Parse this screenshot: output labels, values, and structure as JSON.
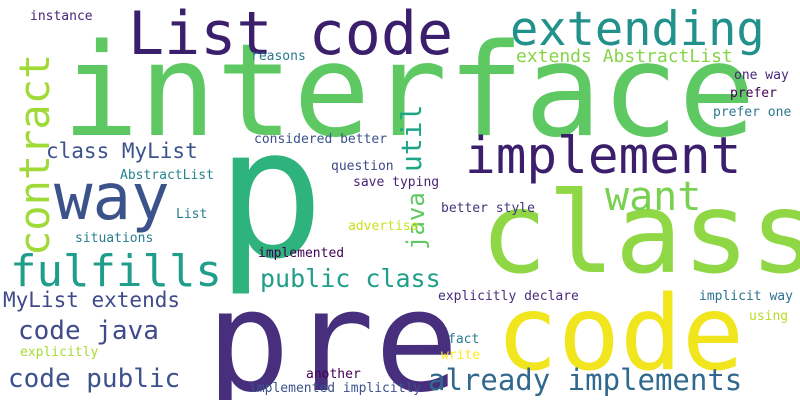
{
  "words": [
    {
      "id": "w-interface",
      "text": "interface",
      "color": "#5ec962"
    },
    {
      "id": "w-p",
      "text": "p",
      "color": "#2eb37c"
    },
    {
      "id": "w-pre",
      "text": "pre",
      "color": "#472f7d"
    },
    {
      "id": "w-class",
      "text": "class",
      "color": "#8fd744"
    },
    {
      "id": "w-code",
      "text": "code",
      "color": "#f1e51d"
    },
    {
      "id": "w-list-code",
      "text": "List code",
      "color": "#3b1f6d"
    },
    {
      "id": "w-extending",
      "text": "extending",
      "color": "#21918c"
    },
    {
      "id": "w-implement",
      "text": "implement",
      "color": "#3b1f6d"
    },
    {
      "id": "w-way",
      "text": "way",
      "color": "#3b528b"
    },
    {
      "id": "w-want",
      "text": "want",
      "color": "#7ad151"
    },
    {
      "id": "w-fulfills",
      "text": "fulfills",
      "color": "#1f9e89"
    },
    {
      "id": "w-contract",
      "text": "contract",
      "color": "#a0da39"
    },
    {
      "id": "w-public-class",
      "text": "public class",
      "color": "#1f9e89"
    },
    {
      "id": "w-mylist-extends",
      "text": "MyList extends",
      "color": "#3e4a89"
    },
    {
      "id": "w-code-java",
      "text": "code java",
      "color": "#3e4a89"
    },
    {
      "id": "w-code-public",
      "text": "code public",
      "color": "#3b528b"
    },
    {
      "id": "w-already-implements",
      "text": "already implements",
      "color": "#31688e"
    },
    {
      "id": "w-class-mylist",
      "text": "class MyList",
      "color": "#3b528b"
    },
    {
      "id": "w-util",
      "text": "util",
      "color": "#20a486"
    },
    {
      "id": "w-java",
      "text": "java",
      "color": "#5ec962"
    },
    {
      "id": "w-extends-abstractlist",
      "text": "extends AbstractList",
      "color": "#86d549"
    },
    {
      "id": "w-instance",
      "text": "instance",
      "color": "#482576"
    },
    {
      "id": "w-reasons",
      "text": "reasons",
      "color": "#2a788e"
    },
    {
      "id": "w-considered-better",
      "text": "considered better",
      "color": "#3b528b"
    },
    {
      "id": "w-question",
      "text": "question",
      "color": "#3e4a89"
    },
    {
      "id": "w-save-typing",
      "text": "save typing",
      "color": "#482475"
    },
    {
      "id": "w-abstractlist",
      "text": "AbstractList",
      "color": "#25848e"
    },
    {
      "id": "w-list",
      "text": "List",
      "color": "#287d8e"
    },
    {
      "id": "w-situations",
      "text": "situations",
      "color": "#287d8e"
    },
    {
      "id": "w-advertise",
      "text": "advertise",
      "color": "#cae11f"
    },
    {
      "id": "w-better-style",
      "text": "better style",
      "color": "#46327e"
    },
    {
      "id": "w-implemented",
      "text": "implemented",
      "color": "#440154"
    },
    {
      "id": "w-explicitly-declare",
      "text": "explicitly declare",
      "color": "#472d7b"
    },
    {
      "id": "w-implicit-way",
      "text": "implicit way",
      "color": "#2c728e"
    },
    {
      "id": "w-one-way",
      "text": "one way",
      "color": "#482878"
    },
    {
      "id": "w-prefer",
      "text": "prefer",
      "color": "#440154"
    },
    {
      "id": "w-prefer-one",
      "text": "prefer one",
      "color": "#2a788e"
    },
    {
      "id": "w-using",
      "text": "using",
      "color": "#b5de2b"
    },
    {
      "id": "w-fact",
      "text": "fact",
      "color": "#287d8e"
    },
    {
      "id": "w-write",
      "text": "write",
      "color": "#fde725"
    },
    {
      "id": "w-explicitly",
      "text": "explicitly",
      "color": "#a8db34"
    },
    {
      "id": "w-another",
      "text": "another",
      "color": "#440154"
    },
    {
      "id": "w-implemented-implicitly",
      "text": "implemented implicitly",
      "color": "#3b528b"
    }
  ]
}
